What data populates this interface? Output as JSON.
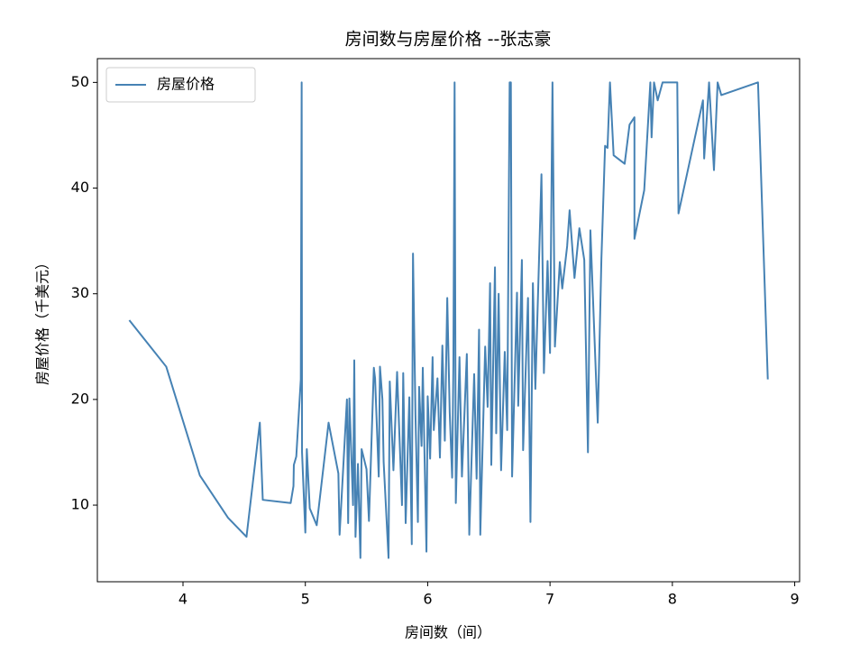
{
  "chart_data": {
    "type": "line",
    "title": "房间数与房屋价格 --张志豪",
    "x_label": "房间数（间）",
    "y_label": "房屋价格（千美元）",
    "legend": "upper left",
    "grid": false,
    "xlim": [
      3.3,
      9.04
    ],
    "ylim": [
      2.75,
      52.25
    ],
    "xticks": [
      4,
      5,
      6,
      7,
      8,
      9
    ],
    "yticks": [
      10,
      20,
      30,
      40,
      50
    ],
    "x": [
      3.561,
      3.863,
      4.138,
      4.368,
      4.519,
      4.628,
      4.652,
      4.88,
      4.903,
      4.906,
      4.926,
      4.963,
      4.97,
      4.973,
      5.0,
      5.012,
      5.036,
      5.093,
      5.19,
      5.27,
      5.28,
      5.34,
      5.35,
      5.36,
      5.39,
      5.4,
      5.41,
      5.43,
      5.45,
      5.46,
      5.5,
      5.52,
      5.56,
      5.57,
      5.6,
      5.61,
      5.63,
      5.64,
      5.68,
      5.69,
      5.72,
      5.75,
      5.79,
      5.8,
      5.82,
      5.85,
      5.87,
      5.88,
      5.9,
      5.92,
      5.93,
      5.95,
      5.96,
      5.99,
      6.0,
      6.02,
      6.04,
      6.05,
      6.08,
      6.1,
      6.12,
      6.14,
      6.16,
      6.18,
      6.2,
      6.21,
      6.22,
      6.23,
      6.26,
      6.28,
      6.32,
      6.34,
      6.38,
      6.4,
      6.42,
      6.43,
      6.47,
      6.49,
      6.51,
      6.52,
      6.55,
      6.56,
      6.58,
      6.6,
      6.63,
      6.65,
      6.67,
      6.68,
      6.69,
      6.73,
      6.74,
      6.77,
      6.78,
      6.82,
      6.84,
      6.86,
      6.88,
      6.93,
      6.95,
      6.98,
      7.0,
      7.02,
      7.04,
      7.08,
      7.1,
      7.14,
      7.16,
      7.2,
      7.24,
      7.28,
      7.31,
      7.33,
      7.39,
      7.42,
      7.45,
      7.47,
      7.49,
      7.52,
      7.61,
      7.65,
      7.69,
      7.69,
      7.77,
      7.82,
      7.83,
      7.85,
      7.88,
      7.92,
      8.04,
      8.05,
      8.25,
      8.26,
      8.3,
      8.34,
      8.37,
      8.4,
      8.7,
      8.78
    ],
    "series": [
      {
        "name": "房屋价格",
        "color": "#4682b4",
        "values": [
          27.5,
          23.1,
          12.8,
          8.8,
          7.0,
          17.8,
          10.5,
          10.2,
          11.8,
          13.8,
          14.6,
          21.9,
          50,
          15,
          7.4,
          15.3,
          9.7,
          8.1,
          17.8,
          13.0,
          7.2,
          20,
          8.3,
          20.1,
          10,
          23.7,
          7,
          13.9,
          5,
          15.3,
          13.4,
          8.5,
          23,
          22,
          12.7,
          23.1,
          20,
          14.1,
          5,
          21.7,
          13.3,
          22.6,
          10,
          22.5,
          8.3,
          20.2,
          6.3,
          33.8,
          18.6,
          8.4,
          21.2,
          15.6,
          23,
          5.6,
          20.3,
          14.4,
          24,
          17.1,
          22,
          14.5,
          25.1,
          16.1,
          29.6,
          18.8,
          12.6,
          23.1,
          50,
          10.2,
          24,
          12.7,
          24.3,
          7.2,
          22.4,
          12.5,
          26.6,
          7.2,
          25,
          19.3,
          31,
          13.8,
          32.5,
          16.8,
          30,
          13.3,
          24.5,
          17.1,
          50,
          50,
          12.7,
          30.1,
          19.4,
          33.2,
          15.2,
          29.6,
          8.4,
          31,
          21,
          41.3,
          22.5,
          33.1,
          24.4,
          50,
          25,
          33,
          30.5,
          34.5,
          37.9,
          31.5,
          36.2,
          33.2,
          15,
          36,
          17.8,
          33.3,
          44,
          43.8,
          50,
          43.1,
          42.3,
          46,
          46.7,
          35.2,
          39.8,
          50,
          44.8,
          50,
          48.3,
          50,
          50,
          37.6,
          48.3,
          42.8,
          50,
          41.7,
          50,
          48.8,
          50,
          21.9
        ]
      }
    ]
  }
}
